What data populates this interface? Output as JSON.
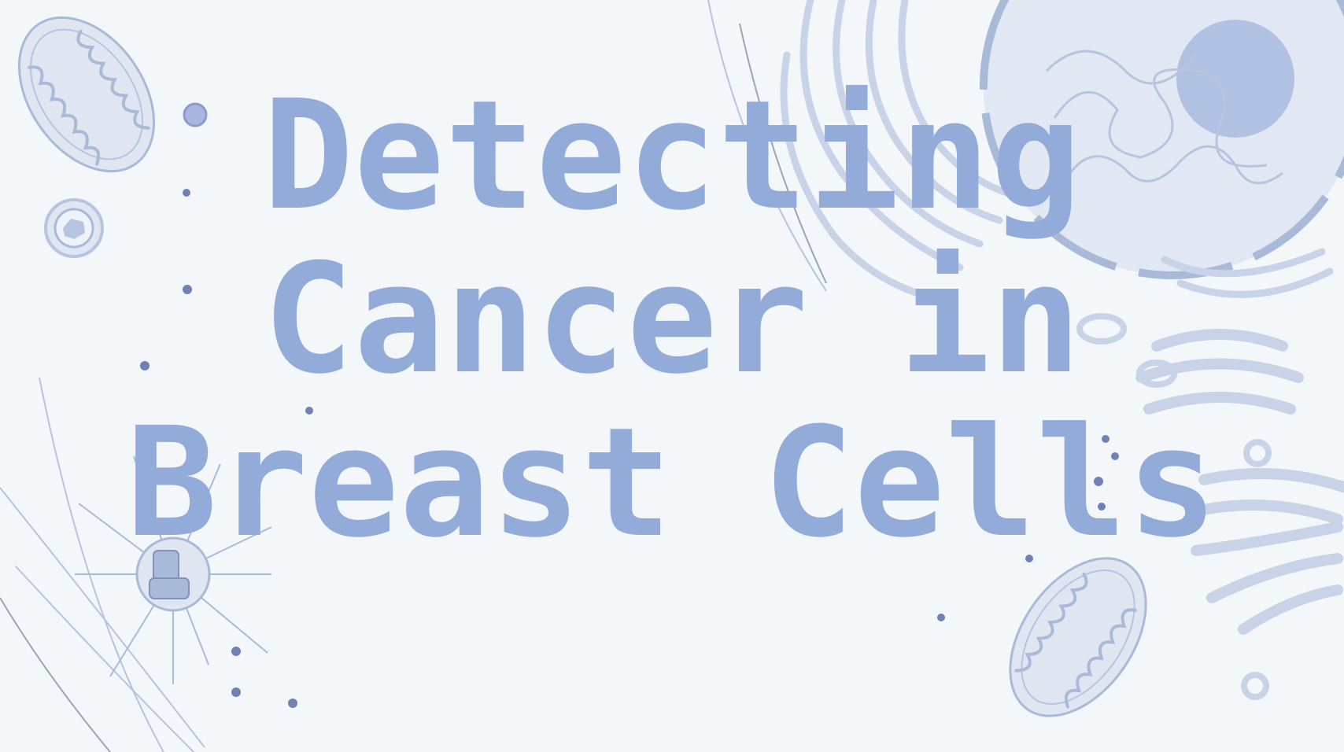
{
  "slide": {
    "title_lines": [
      "Detecting",
      "Cancer in",
      "Breast Cells"
    ]
  },
  "colors": {
    "background": "#f3f7fa",
    "title": "#92abd9",
    "art_fill": "#dfe6f2",
    "art_stroke": "#a9b9d8",
    "dots": "#6f82b5"
  },
  "icons": [
    "mitochondrion-icon",
    "cell-nucleus-icon",
    "endoplasmic-reticulum-icon",
    "golgi-apparatus-icon",
    "centrosome-icon",
    "vesicle-icon",
    "dot-particles"
  ]
}
